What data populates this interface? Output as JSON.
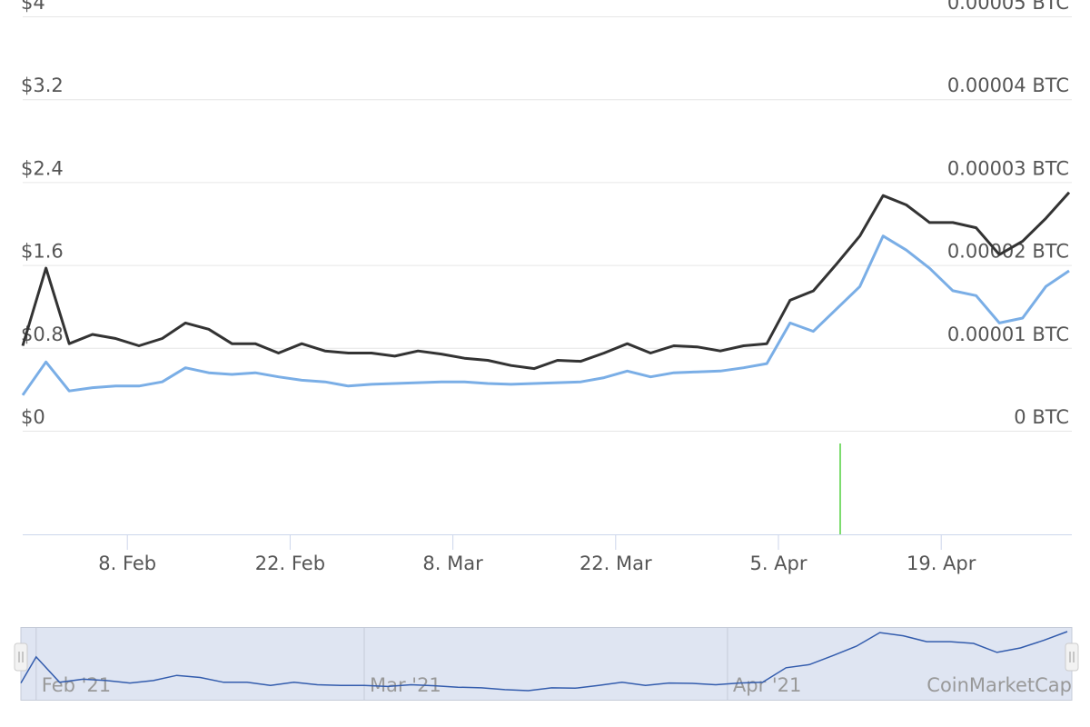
{
  "chart_data": {
    "type": "line",
    "x": [
      "2021-01-30",
      "2021-02-01",
      "2021-02-03",
      "2021-02-05",
      "2021-02-07",
      "2021-02-09",
      "2021-02-11",
      "2021-02-13",
      "2021-02-15",
      "2021-02-17",
      "2021-02-19",
      "2021-02-21",
      "2021-02-23",
      "2021-02-25",
      "2021-02-27",
      "2021-03-01",
      "2021-03-03",
      "2021-03-05",
      "2021-03-07",
      "2021-03-09",
      "2021-03-11",
      "2021-03-13",
      "2021-03-15",
      "2021-03-17",
      "2021-03-19",
      "2021-03-21",
      "2021-03-23",
      "2021-03-25",
      "2021-03-27",
      "2021-03-29",
      "2021-03-31",
      "2021-04-02",
      "2021-04-04",
      "2021-04-06",
      "2021-04-08",
      "2021-04-10",
      "2021-04-12",
      "2021-04-14",
      "2021-04-16",
      "2021-04-18",
      "2021-04-20",
      "2021-04-22",
      "2021-04-24",
      "2021-04-26",
      "2021-04-28",
      "2021-04-30"
    ],
    "series": [
      {
        "color": "#333333",
        "axis": "y",
        "values": [
          0.82,
          1.57,
          0.84,
          0.93,
          0.89,
          0.82,
          0.89,
          1.04,
          0.98,
          0.84,
          0.84,
          0.75,
          0.84,
          0.77,
          0.75,
          0.75,
          0.72,
          0.77,
          0.74,
          0.7,
          0.68,
          0.63,
          0.6,
          0.68,
          0.67,
          0.75,
          0.84,
          0.75,
          0.82,
          0.81,
          0.77,
          0.82,
          0.84,
          1.26,
          1.35,
          1.61,
          1.88,
          2.27,
          2.18,
          2.01,
          2.01,
          1.96,
          1.7,
          1.83,
          2.05,
          2.3
        ]
      },
      {
        "color": "#7aaee6",
        "axis": "y2",
        "values": [
          4.3e-06,
          8.3e-06,
          4.8e-06,
          5.2e-06,
          5.4e-06,
          5.4e-06,
          5.9e-06,
          7.6e-06,
          7e-06,
          6.8e-06,
          7e-06,
          6.5e-06,
          6.1e-06,
          5.9e-06,
          5.4e-06,
          5.6e-06,
          5.7e-06,
          5.8e-06,
          5.9e-06,
          5.9e-06,
          5.7e-06,
          5.6e-06,
          5.7e-06,
          5.8e-06,
          5.9e-06,
          6.4e-06,
          7.2e-06,
          6.5e-06,
          7e-06,
          7.1e-06,
          7.2e-06,
          7.6e-06,
          8.1e-06,
          1.3e-05,
          1.2e-05,
          1.47e-05,
          1.74e-05,
          2.35e-05,
          2.18e-05,
          1.96e-05,
          1.69e-05,
          1.63e-05,
          1.3e-05,
          1.36e-05,
          1.74e-05,
          1.93e-05
        ]
      }
    ],
    "xlim": [
      "2021-01-30",
      "2021-04-30"
    ],
    "xticks": [
      {
        "value": "2021-02-08",
        "label": "8. Feb"
      },
      {
        "value": "2021-02-22",
        "label": "22. Feb"
      },
      {
        "value": "2021-03-08",
        "label": "8. Mar"
      },
      {
        "value": "2021-03-22",
        "label": "22. Mar"
      },
      {
        "value": "2021-04-05",
        "label": "5. Apr"
      },
      {
        "value": "2021-04-19",
        "label": "19. Apr"
      }
    ],
    "ylim": [
      0,
      4
    ],
    "yticks": [
      {
        "value": 0,
        "label": "$0"
      },
      {
        "value": 0.8,
        "label": "$0.8"
      },
      {
        "value": 1.6,
        "label": "$1.6"
      },
      {
        "value": 2.4,
        "label": "$2.4"
      },
      {
        "value": 3.2,
        "label": "$3.2"
      },
      {
        "value": 4,
        "label": "$4"
      }
    ],
    "y2lim": [
      0,
      5e-05
    ],
    "y2ticks": [
      {
        "value": 0,
        "label": "0 BTC"
      },
      {
        "value": 1e-05,
        "label": "0.00001 BTC"
      },
      {
        "value": 2e-05,
        "label": "0.00002 BTC"
      },
      {
        "value": 3e-05,
        "label": "0.00003 BTC"
      },
      {
        "value": 4e-05,
        "label": "0.00004 BTC"
      },
      {
        "value": 5e-05,
        "label": "0.00005 BTC"
      }
    ],
    "grid": true,
    "navigator": {
      "xticks": [
        {
          "value": "2021-02-01",
          "label": "Feb '21"
        },
        {
          "value": "2021-03-01",
          "label": "Mar '21"
        },
        {
          "value": "2021-04-01",
          "label": "Apr '21"
        }
      ],
      "watermark": "CoinMarketCap"
    }
  }
}
